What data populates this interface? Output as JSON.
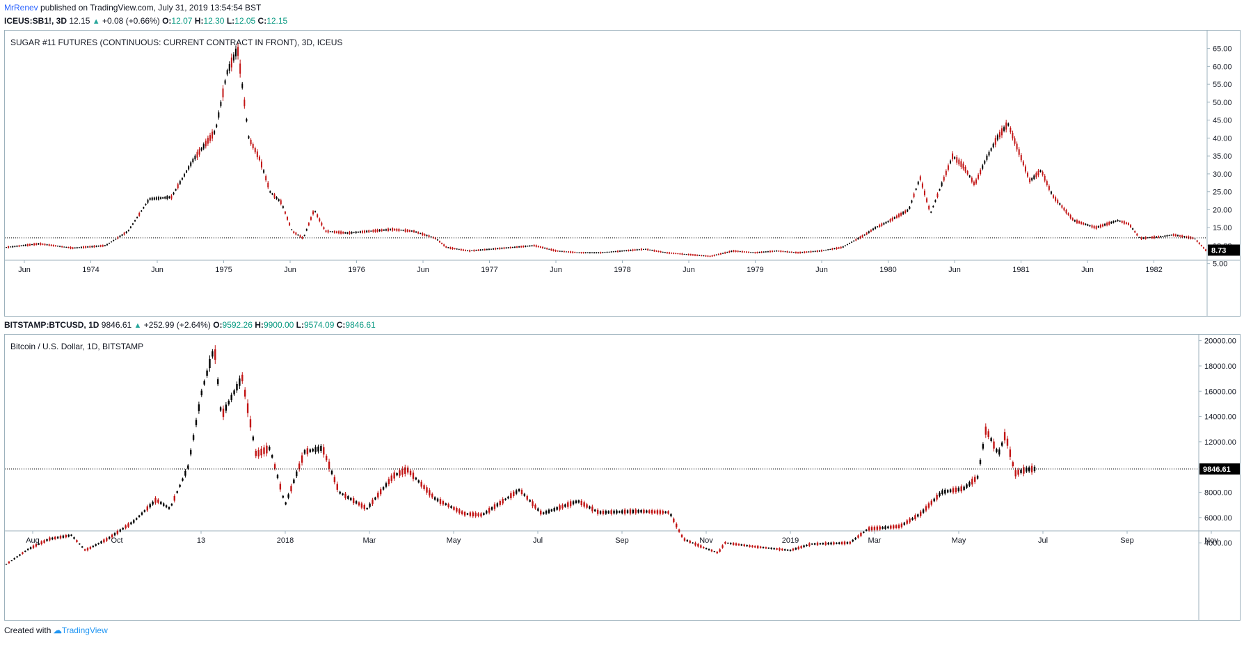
{
  "header": {
    "user": "MrRenev",
    "published": " published on TradingView.com, July 31, 2019 13:54:54 BST"
  },
  "sugar": {
    "symbol": "ICEUS:SB1!, 3D",
    "last": "12.15",
    "change": "+0.08 (+0.66%)",
    "o_label": "O:",
    "o": "12.07",
    "h_label": "H:",
    "h": "12.30",
    "l_label": "L:",
    "l": "12.05",
    "c_label": "C:",
    "c": "12.15",
    "title": "SUGAR #11 FUTURES (CONTINUOUS: CURRENT CONTRACT IN FRONT), 3D, ICEUS",
    "price_tag": "8.73"
  },
  "btc": {
    "symbol": "BITSTAMP:BTCUSD, 1D",
    "last": "9846.61",
    "change": "+252.99 (+2.64%)",
    "o_label": "O:",
    "o": "9592.26",
    "h_label": "H:",
    "h": "9900.00",
    "l_label": "L:",
    "l": "9574.09",
    "c_label": "C:",
    "c": "9846.61",
    "title": "Bitcoin / U.S. Dollar, 1D, BITSTAMP",
    "price_tag": "9846.61"
  },
  "footer": {
    "created": "Created with",
    "brand": "TradingView"
  },
  "colors": {
    "up": "#000000",
    "down": "#c21414",
    "axis": "#9db2bd",
    "text": "#131722",
    "green": "#089981"
  },
  "chart_data": [
    {
      "type": "candlestick",
      "title": "SUGAR #11 FUTURES (CONTINUOUS: CURRENT CONTRACT IN FRONT), 3D, ICEUS",
      "ylim": [
        3,
        69
      ],
      "yticks": [
        "5.00",
        "10.00",
        "15.00",
        "20.00",
        "25.00",
        "30.00",
        "35.00",
        "40.00",
        "45.00",
        "50.00",
        "55.00",
        "60.00",
        "65.00"
      ],
      "xticks": [
        "Jun",
        "1974",
        "Jun",
        "1975",
        "Jun",
        "1976",
        "Jun",
        "1977",
        "Jun",
        "1978",
        "Jun",
        "1979",
        "Jun",
        "1980",
        "Jun",
        "1981",
        "Jun",
        "1982"
      ],
      "reference_line": 12.15,
      "last_price": 8.73,
      "x": [
        "1973-03",
        "1973-06",
        "1973-09",
        "1973-12",
        "1974-02",
        "1974-04",
        "1974-06",
        "1974-08",
        "1974-10",
        "1974-11",
        "1974-12",
        "1975-01",
        "1975-02",
        "1975-03",
        "1975-04",
        "1975-05",
        "1975-06",
        "1975-07",
        "1975-08",
        "1975-10",
        "1975-12",
        "1976-02",
        "1976-04",
        "1976-06",
        "1976-07",
        "1976-09",
        "1976-11",
        "1977-01",
        "1977-03",
        "1977-05",
        "1977-07",
        "1977-09",
        "1977-11",
        "1978-01",
        "1978-03",
        "1978-05",
        "1978-07",
        "1978-09",
        "1978-11",
        "1979-01",
        "1979-03",
        "1979-05",
        "1979-07",
        "1979-09",
        "1979-10",
        "1979-11",
        "1980-01",
        "1980-02",
        "1980-03",
        "1980-05",
        "1980-06",
        "1980-07",
        "1980-08",
        "1980-09",
        "1980-10",
        "1980-11",
        "1980-12",
        "1981-01",
        "1981-02",
        "1981-04",
        "1981-06",
        "1981-08",
        "1981-09",
        "1981-10",
        "1981-12",
        "1982-01",
        "1982-03",
        "1982-04"
      ],
      "values": [
        9.5,
        10.5,
        9.3,
        10.0,
        14.0,
        23.0,
        23.5,
        34.0,
        42.0,
        58.0,
        65.0,
        40.0,
        34.0,
        25.0,
        22.0,
        14.0,
        12.0,
        20.0,
        14.0,
        13.5,
        14.0,
        14.5,
        14.0,
        12.0,
        9.5,
        8.5,
        9.0,
        9.5,
        10.0,
        8.5,
        8.0,
        8.0,
        8.5,
        9.0,
        8.0,
        7.5,
        7.0,
        8.5,
        8.0,
        8.5,
        8.0,
        8.5,
        9.5,
        13.0,
        15.0,
        16.5,
        20.0,
        29.0,
        19.0,
        35.0,
        32.0,
        27.0,
        34.0,
        40.0,
        44.0,
        36.0,
        28.0,
        31.0,
        24.0,
        17.0,
        15.0,
        17.0,
        16.0,
        12.0,
        12.5,
        13.0,
        12.0,
        8.73
      ]
    },
    {
      "type": "candlestick",
      "title": "Bitcoin / U.S. Dollar, 1D, BITSTAMP",
      "ylim": [
        2300,
        20200
      ],
      "yticks": [
        "4000.00",
        "6000.00",
        "8000.00",
        "10000.00",
        "12000.00",
        "14000.00",
        "16000.00",
        "18000.00",
        "20000.00"
      ],
      "xticks": [
        "Aug",
        "Oct",
        "13",
        "2018",
        "Mar",
        "May",
        "Jul",
        "Sep",
        "Nov",
        "2019",
        "Mar",
        "May",
        "Jul",
        "Sep",
        "Nov"
      ],
      "reference_line": 9846.61,
      "last_price": 9846.61,
      "x": [
        "2017-07-20",
        "2017-08-05",
        "2017-08-20",
        "2017-09-05",
        "2017-09-15",
        "2017-10-01",
        "2017-10-20",
        "2017-11-05",
        "2017-11-15",
        "2017-11-28",
        "2017-12-08",
        "2017-12-17",
        "2017-12-22",
        "2018-01-06",
        "2018-01-16",
        "2018-01-26",
        "2018-02-06",
        "2018-02-20",
        "2018-03-05",
        "2018-03-17",
        "2018-04-06",
        "2018-04-25",
        "2018-05-05",
        "2018-05-25",
        "2018-06-15",
        "2018-06-28",
        "2018-07-25",
        "2018-08-10",
        "2018-09-05",
        "2018-09-20",
        "2018-10-20",
        "2018-11-10",
        "2018-11-20",
        "2018-12-05",
        "2018-12-15",
        "2018-12-20",
        "2019-01-10",
        "2019-02-05",
        "2019-02-20",
        "2019-03-20",
        "2019-04-02",
        "2019-04-25",
        "2019-05-10",
        "2019-05-25",
        "2019-06-10",
        "2019-06-20",
        "2019-06-26",
        "2019-07-05",
        "2019-07-10",
        "2019-07-17",
        "2019-07-25",
        "2019-07-31"
      ],
      "values": [
        2300,
        3500,
        4300,
        4600,
        3400,
        4300,
        5700,
        7400,
        6700,
        10000,
        16000,
        19500,
        14000,
        17100,
        11000,
        11500,
        7000,
        11200,
        11500,
        8000,
        6700,
        9300,
        9800,
        7500,
        6300,
        6200,
        8200,
        6300,
        7300,
        6400,
        6500,
        6400,
        4300,
        3600,
        3200,
        4000,
        3700,
        3400,
        3900,
        4000,
        5100,
        5300,
        6300,
        8000,
        8300,
        9200,
        13000,
        11000,
        12600,
        9500,
        9800,
        9846.61
      ]
    }
  ]
}
